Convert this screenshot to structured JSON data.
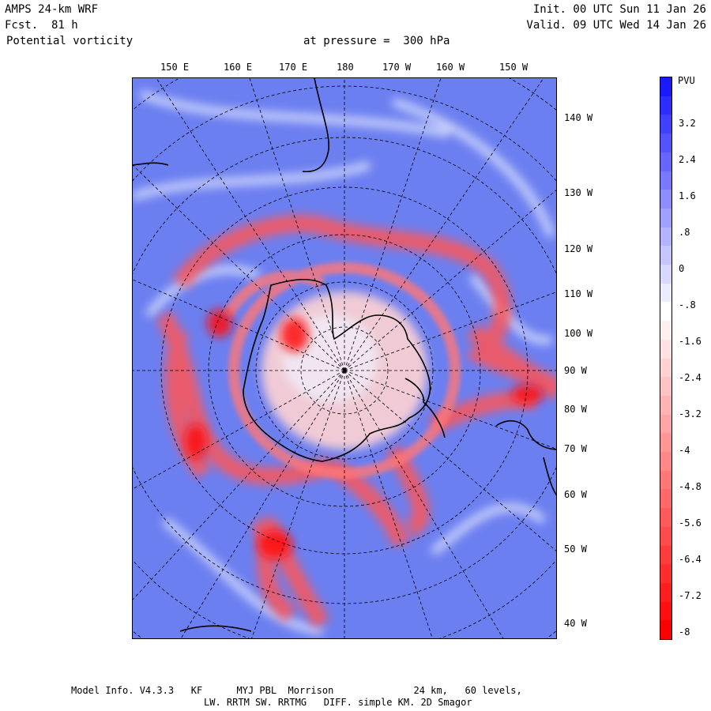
{
  "header": {
    "model": "AMPS 24-km WRF",
    "fcst": "Fcst.  81 h",
    "field": "Potential vorticity",
    "level": "at pressure =  300 hPa",
    "init": "Init. 00 UTC Sun 11 Jan 26",
    "valid": "Valid. 09 UTC Wed 14 Jan 26"
  },
  "map": {
    "top_longitude_labels": [
      "150 E",
      "160 E",
      "170 E",
      "180",
      "170 W",
      "160 W",
      "150 W"
    ],
    "right_longitude_labels": [
      "140 W",
      "130 W",
      "120 W",
      "110 W",
      "100 W",
      "90 W",
      "80 W",
      "70 W",
      "60 W",
      "50 W",
      "40 W"
    ],
    "low_pv_color": "#ff0000",
    "neutral_color": "#ffffff",
    "high_pv_color": "#0000ff"
  },
  "colorbar": {
    "unit": "PVU",
    "tick_labels": [
      "3.2",
      "2.4",
      "1.6",
      ".8",
      "0",
      "-.8",
      "-1.6",
      "-2.4",
      "-3.2",
      "-4",
      "-4.8",
      "-5.6",
      "-6.4",
      "-7.2",
      "-8"
    ],
    "top_color": "#1a1aff",
    "mid_color": "#ffffff",
    "bottom_color": "#ff0000"
  },
  "footer": {
    "line1": "Model Info. V4.3.3   KF      MYJ PBL  Morrison              24 km,   60 levels,",
    "line2": "LW. RRTM SW. RRTMG   DIFF. simple KM. 2D Smagor"
  }
}
